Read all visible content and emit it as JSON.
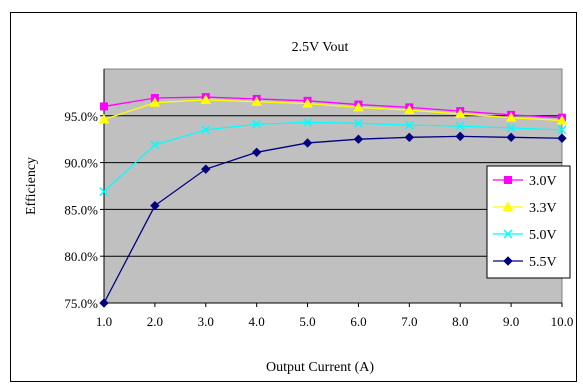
{
  "chart_data": {
    "type": "line",
    "title": "2.5V  Vout",
    "xlabel": "Output Current (A)",
    "ylabel": "Efficiency",
    "x": [
      1.0,
      2.0,
      3.0,
      4.0,
      5.0,
      6.0,
      7.0,
      8.0,
      9.0,
      10.0
    ],
    "x_tick_labels": [
      "1.0",
      "2.0",
      "3.0",
      "4.0",
      "5.0",
      "6.0",
      "7.0",
      "8.0",
      "9.0",
      "10.0"
    ],
    "y_tick_labels": [
      "75.0%",
      "80.0%",
      "85.0%",
      "90.0%",
      "95.0%"
    ],
    "y_ticks": [
      75,
      80,
      85,
      90,
      95
    ],
    "xlim": [
      1.0,
      10.0
    ],
    "ylim": [
      75,
      100
    ],
    "grid": true,
    "legend_position": "right",
    "plot_background": "#c0c0c0",
    "series": [
      {
        "name": "3.0V",
        "color": "#ff00ff",
        "marker": "square",
        "values": [
          96.0,
          96.9,
          97.0,
          96.8,
          96.6,
          96.2,
          95.9,
          95.5,
          95.1,
          94.8
        ]
      },
      {
        "name": "3.3V",
        "color": "#ffff00",
        "marker": "triangle",
        "values": [
          94.6,
          96.4,
          96.7,
          96.5,
          96.3,
          95.9,
          95.6,
          95.2,
          94.8,
          94.5
        ]
      },
      {
        "name": "5.0V",
        "color": "#00ffff",
        "marker": "x",
        "values": [
          86.9,
          91.9,
          93.5,
          94.1,
          94.3,
          94.2,
          94.0,
          93.9,
          93.7,
          93.5
        ]
      },
      {
        "name": "5.5V",
        "color": "#000080",
        "marker": "diamond",
        "values": [
          75.0,
          85.4,
          89.3,
          91.1,
          92.1,
          92.5,
          92.7,
          92.8,
          92.7,
          92.6
        ]
      }
    ]
  }
}
